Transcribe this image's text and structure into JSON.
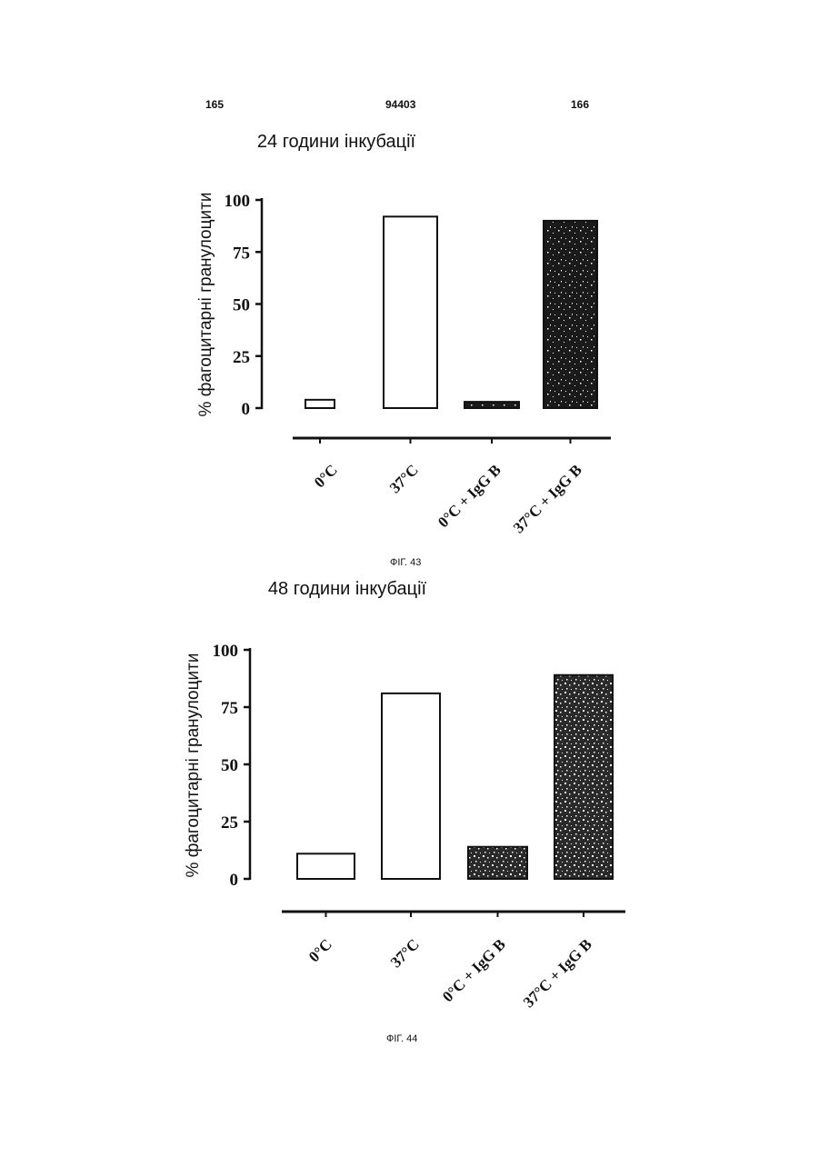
{
  "page": {
    "left_number": "165",
    "center_number": "94403",
    "right_number": "166"
  },
  "colors": {
    "ink": "#111111",
    "bar_white": "#ffffff",
    "bar_dark": "#1a1a1a",
    "bar_dotted": "#2a2a2a"
  },
  "chart_data": [
    {
      "type": "bar",
      "title": "24 години інкубації",
      "ylabel": "% фагоцитарні гранулоцити",
      "xlabel": "",
      "caption": "ФІГ. 43",
      "categories": [
        "0°C",
        "37°C",
        "0°C + IgG B",
        "37°C + IgG B"
      ],
      "values": [
        4,
        92,
        3,
        90
      ],
      "bar_styles": [
        "white",
        "white",
        "dark",
        "dark"
      ],
      "ylim": [
        0,
        100
      ],
      "yticks": [
        "0",
        "25",
        "50",
        "75",
        "100"
      ],
      "grid": false,
      "legend": "none"
    },
    {
      "type": "bar",
      "title": "48 години інкубації",
      "ylabel": "% фагоцитарні гранулоцити",
      "xlabel": "",
      "caption": "ФІГ. 44",
      "categories": [
        "0°C",
        "37°C",
        "0°C + IgG B",
        "37°C + IgG B"
      ],
      "values": [
        11,
        81,
        14,
        89
      ],
      "bar_styles": [
        "white",
        "white",
        "dark",
        "dark"
      ],
      "ylim": [
        0,
        100
      ],
      "yticks": [
        "0",
        "25",
        "50",
        "75",
        "100"
      ],
      "grid": false,
      "legend": "none"
    }
  ]
}
